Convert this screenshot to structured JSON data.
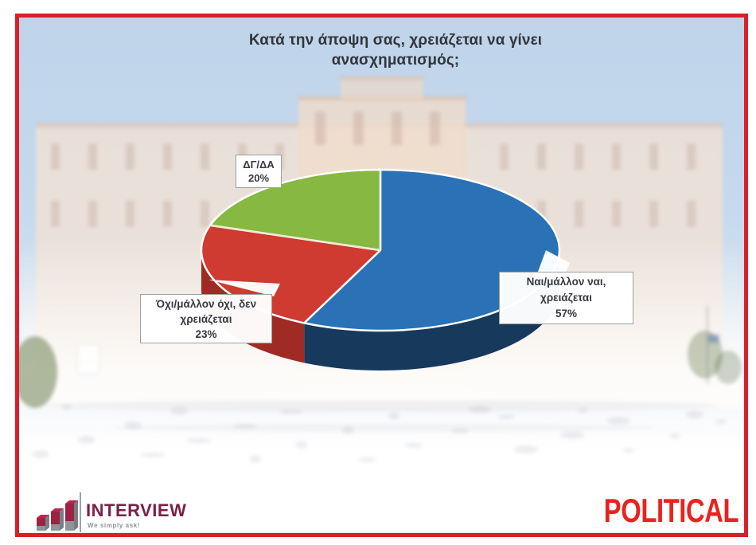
{
  "chart": {
    "title_line1": "Κατά την άποψη σας, χρειάζεται να γίνει",
    "title_line2": "ανασχηματισμός;"
  },
  "chart_data": {
    "type": "pie",
    "title": "Κατά την άποψη σας, χρειάζεται να γίνει ανασχηματισμός;",
    "unit": "%",
    "style": "3d",
    "start_angle_deg": 0,
    "direction": "clockwise",
    "slices": [
      {
        "label": "Ναι/μάλλον ναι, χρειάζεται",
        "value": 57,
        "color": "#2a72b5",
        "side_color": "#16395c"
      },
      {
        "label": "Όχι/μάλλον όχι, δεν χρειάζεται",
        "value": 23,
        "color": "#cf3a31",
        "side_color": "#a02a24"
      },
      {
        "label": "ΔΓ/ΔΑ",
        "value": 20,
        "color": "#86b842",
        "side_color": "#679231"
      }
    ],
    "labels": [
      {
        "lines": [
          "Ναι/μάλλον ναι,",
          "χρειάζεται",
          "57%"
        ]
      },
      {
        "lines": [
          "Όχι/μάλλον όχι, δεν",
          "χρειάζεται",
          "23%"
        ]
      },
      {
        "lines": [
          "ΔΓ/ΔΑ",
          "20%"
        ]
      }
    ]
  },
  "footer": {
    "interview": "INTERVIEW",
    "interview_tagline": "We simply ask!",
    "political": "POLITICAL"
  },
  "frame": {
    "border_color": "#d6202a"
  }
}
